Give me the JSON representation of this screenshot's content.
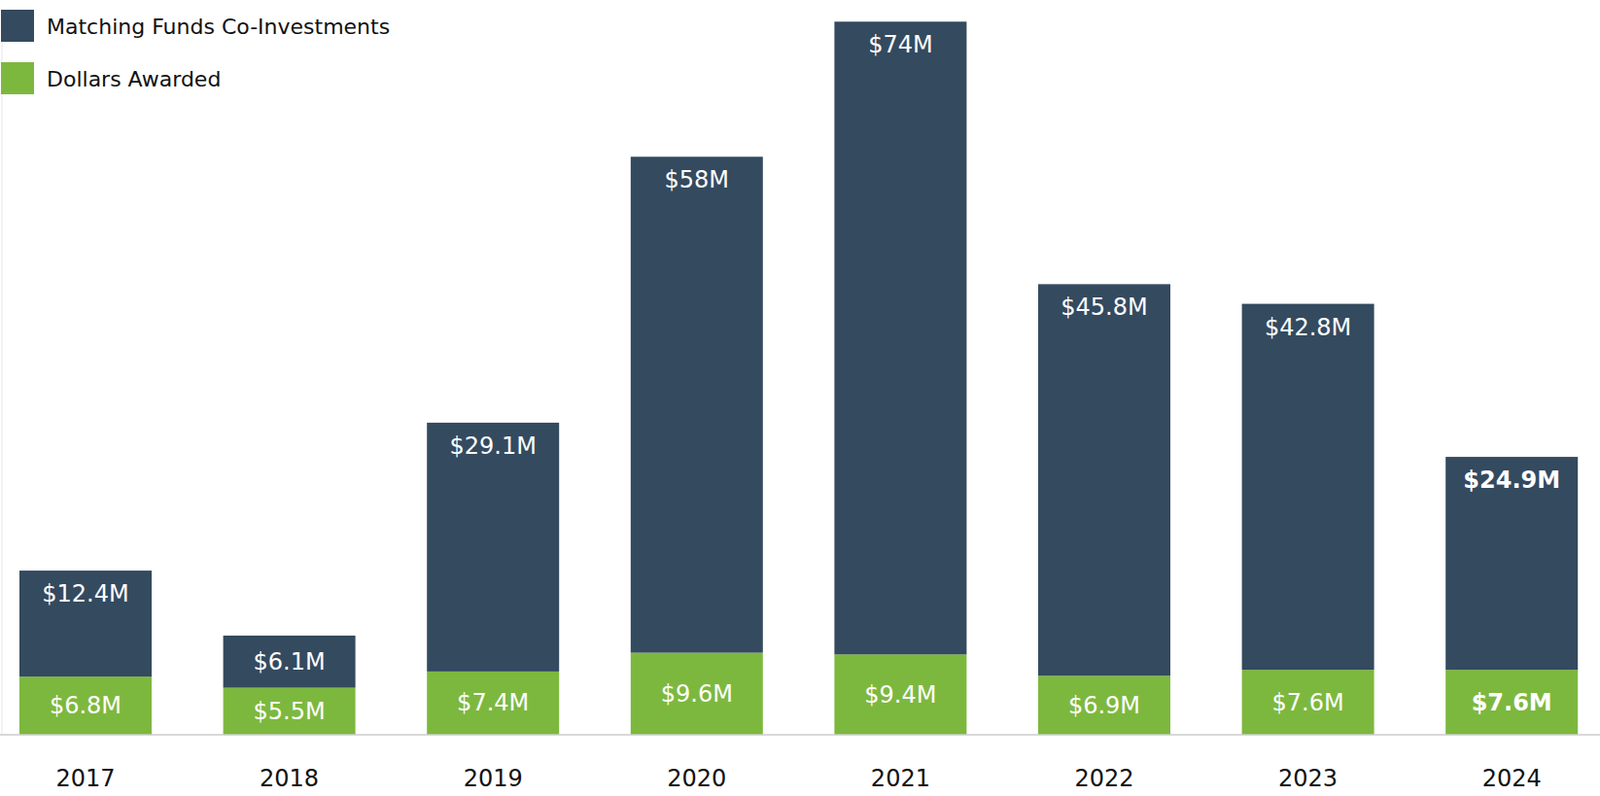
{
  "chart_data": {
    "type": "bar",
    "stacked": true,
    "data_labels": true,
    "grid": false,
    "legend": "upper left",
    "tick_labels": "x",
    "categories": [
      "2017",
      "2018",
      "2019",
      "2020",
      "2021",
      "2022",
      "2023",
      "2024"
    ],
    "ylim": [
      0,
      84
    ],
    "series": [
      {
        "name": "Dollars Awarded",
        "color": "#7db83e",
        "values": [
          6.8,
          5.5,
          7.4,
          9.6,
          9.4,
          6.9,
          7.6,
          7.6
        ],
        "value_labels": [
          "$6.8M",
          "$5.5M",
          "$7.4M",
          "$9.6M",
          "$9.4M",
          "$6.9M",
          "$7.6M",
          "$7.6M"
        ]
      },
      {
        "name": "Matching Funds Co-Investments",
        "color": "#344a5f",
        "values": [
          12.4,
          6.1,
          29.1,
          58,
          74,
          45.8,
          42.8,
          24.9
        ],
        "value_labels": [
          "$12.4M",
          "$6.1M",
          "$29.1M",
          "$58M",
          "$74M",
          "$45.8M",
          "$42.8M",
          "$24.9M"
        ]
      }
    ]
  }
}
